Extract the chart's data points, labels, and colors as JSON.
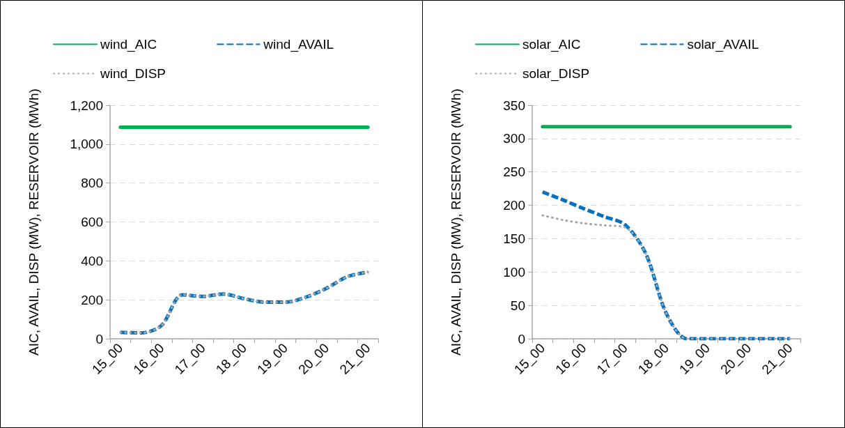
{
  "chart_data": [
    {
      "type": "line",
      "ylabel": "AIC, AVAIL, DISP (MW), RESERVOIR (MWh)",
      "categories": [
        "15_00",
        null,
        "16_00",
        null,
        "17_00",
        null,
        "18_00",
        null,
        "19_00",
        null,
        "20_00",
        null,
        "21_00"
      ],
      "series": [
        {
          "name": "wind_AIC",
          "color": "#00b050",
          "line_style": "solid",
          "values": [
            1087,
            1087,
            1087,
            1087,
            1087,
            1087,
            1087,
            1087,
            1087,
            1087,
            1087,
            1087,
            1087
          ]
        },
        {
          "name": "wind_AVAIL",
          "color": "#0070c0",
          "line_style": "dashed",
          "values": [
            33,
            30,
            69,
            226,
            218,
            230,
            206,
            188,
            188,
            214,
            260,
            319,
            343
          ]
        },
        {
          "name": "wind_DISP",
          "color": "#a6a6a6",
          "line_style": "dotted",
          "values": [
            33,
            30,
            69,
            226,
            218,
            230,
            206,
            188,
            188,
            214,
            260,
            319,
            343
          ]
        }
      ],
      "ylim": [
        0,
        1200
      ],
      "yticks": [
        0,
        200,
        400,
        600,
        800,
        {
          "value": 1000,
          "label": "1,000"
        },
        {
          "value": 1200,
          "label": "1,200"
        }
      ],
      "grid": "y",
      "legend": "top",
      "marker": "none"
    },
    {
      "type": "line",
      "ylabel": "AIC, AVAIL, DISP (MW), RESERVOIR (MWh)",
      "categories": [
        "15_00",
        null,
        "16_00",
        null,
        "17_00",
        null,
        "18_00",
        null,
        "19_00",
        null,
        "20_00",
        null,
        "21_00"
      ],
      "series": [
        {
          "name": "solar_AIC",
          "color": "#00b050",
          "line_style": "solid",
          "values": [
            318,
            318,
            318,
            318,
            318,
            318,
            318,
            318,
            318,
            318,
            318,
            318,
            318
          ]
        },
        {
          "name": "solar_AVAIL",
          "color": "#0070c0",
          "line_style": "dashed",
          "values": [
            220,
            208,
            195,
            183,
            171,
            128,
            38,
            0,
            0,
            0,
            0,
            0,
            0
          ]
        },
        {
          "name": "solar_DISP",
          "color": "#a6a6a6",
          "line_style": "dotted",
          "values": [
            185,
            178,
            173,
            170,
            167,
            128,
            38,
            0,
            0,
            0,
            0,
            0,
            0
          ]
        }
      ],
      "ylim": [
        0,
        350
      ],
      "yticks": [
        0,
        50,
        100,
        150,
        200,
        250,
        300,
        350
      ],
      "grid": "y",
      "legend": "top",
      "marker": "none"
    }
  ]
}
